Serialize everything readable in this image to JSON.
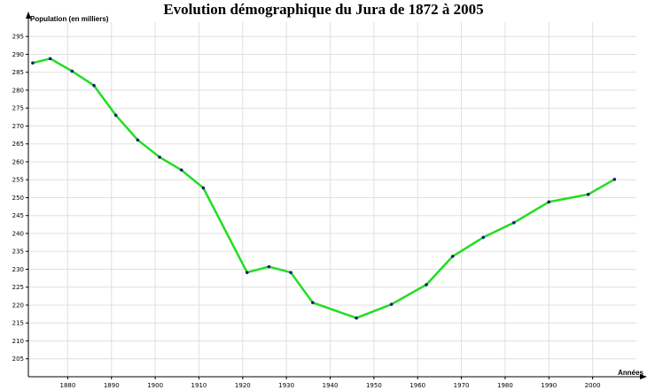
{
  "chart_data": {
    "type": "line",
    "title": "Evolution démographique du Jura de 1872 à 2005",
    "ylabel": "Population (en milliers)",
    "xlabel": "Années",
    "x": [
      1872,
      1876,
      1881,
      1886,
      1891,
      1896,
      1901,
      1906,
      1911,
      1921,
      1926,
      1931,
      1936,
      1946,
      1954,
      1962,
      1968,
      1975,
      1982,
      1990,
      1999,
      2005
    ],
    "series": [
      {
        "values": [
          287.6,
          288.8,
          285.3,
          281.3,
          273.0,
          266.1,
          261.3,
          257.7,
          252.7,
          229.1,
          230.7,
          229.1,
          220.7,
          216.4,
          220.2,
          225.7,
          233.6,
          238.9,
          243.0,
          248.8,
          250.9,
          255.1
        ]
      }
    ],
    "xlim": [
      1871,
      2010
    ],
    "ylim": [
      200,
      299
    ],
    "xticks": [
      1880,
      1890,
      1900,
      1910,
      1920,
      1930,
      1940,
      1950,
      1960,
      1970,
      1980,
      1990,
      2000
    ],
    "yticks": [
      205,
      210,
      215,
      220,
      225,
      230,
      235,
      240,
      245,
      250,
      255,
      260,
      265,
      270,
      275,
      280,
      285,
      290,
      295
    ],
    "grid": true,
    "line_color": "#22dd22",
    "marker_color": "#1a1a7a",
    "grid_color": "#e0e0e0",
    "axis_color": "#000000"
  }
}
